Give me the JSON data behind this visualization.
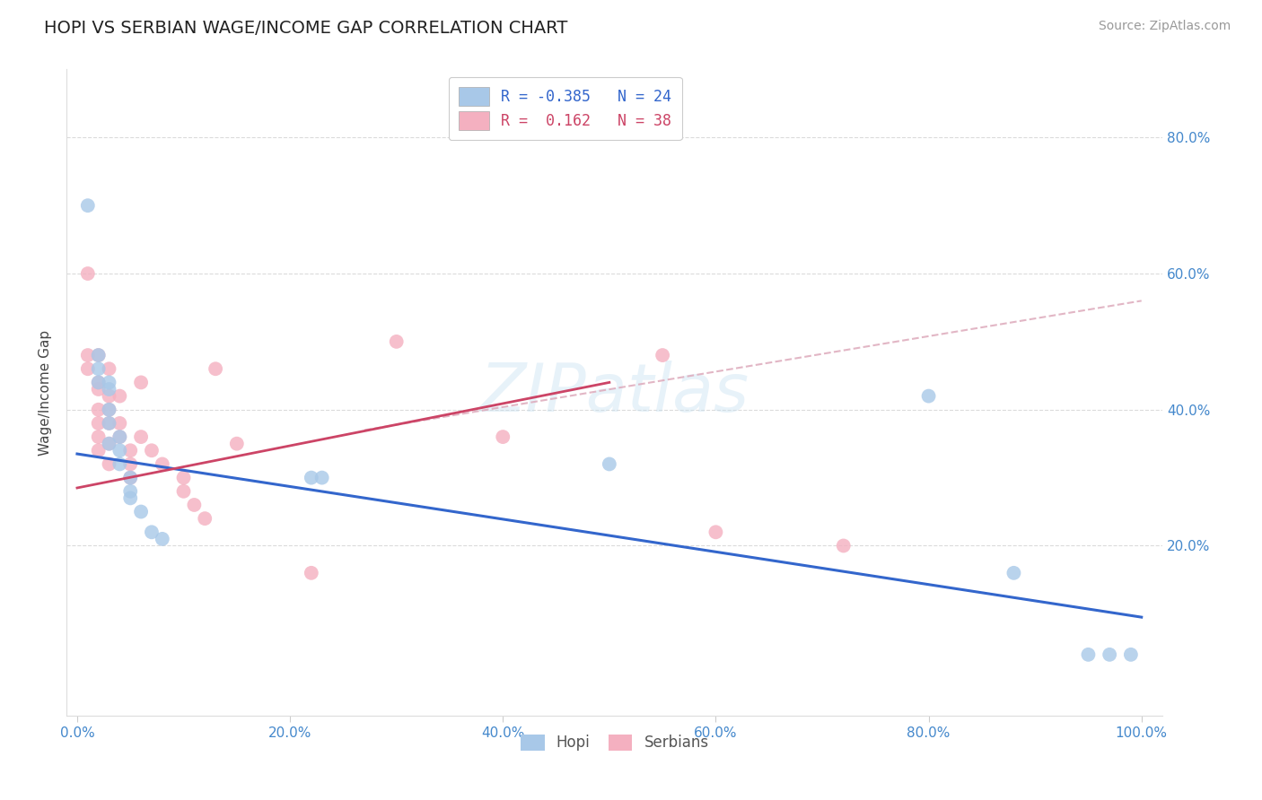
{
  "title": "HOPI VS SERBIAN WAGE/INCOME GAP CORRELATION CHART",
  "source": "Source: ZipAtlas.com",
  "ylabel": "Wage/Income Gap",
  "xlabel_ticks": [
    "0.0%",
    "20.0%",
    "40.0%",
    "60.0%",
    "80.0%",
    "100.0%"
  ],
  "ylabel_ticks_right": [
    "20.0%",
    "40.0%",
    "60.0%",
    "80.0%"
  ],
  "xlim": [
    -0.01,
    1.02
  ],
  "ylim": [
    -0.05,
    0.9
  ],
  "grid_color": "#cccccc",
  "background": "#ffffff",
  "hopi_color": "#a8c8e8",
  "serbian_color": "#f4b0c0",
  "hopi_line_color": "#3366cc",
  "serbian_line_color": "#cc4466",
  "dashed_line_color": "#ddaabb",
  "hopi_scatter": [
    [
      0.01,
      0.7
    ],
    [
      0.02,
      0.48
    ],
    [
      0.02,
      0.46
    ],
    [
      0.02,
      0.44
    ],
    [
      0.03,
      0.44
    ],
    [
      0.03,
      0.43
    ],
    [
      0.03,
      0.4
    ],
    [
      0.03,
      0.38
    ],
    [
      0.03,
      0.35
    ],
    [
      0.04,
      0.36
    ],
    [
      0.04,
      0.34
    ],
    [
      0.04,
      0.32
    ],
    [
      0.05,
      0.3
    ],
    [
      0.05,
      0.28
    ],
    [
      0.05,
      0.27
    ],
    [
      0.06,
      0.25
    ],
    [
      0.07,
      0.22
    ],
    [
      0.08,
      0.21
    ],
    [
      0.22,
      0.3
    ],
    [
      0.23,
      0.3
    ],
    [
      0.5,
      0.32
    ],
    [
      0.8,
      0.42
    ],
    [
      0.88,
      0.16
    ],
    [
      0.95,
      0.04
    ],
    [
      0.97,
      0.04
    ],
    [
      0.99,
      0.04
    ]
  ],
  "serbian_scatter": [
    [
      0.01,
      0.6
    ],
    [
      0.01,
      0.48
    ],
    [
      0.01,
      0.46
    ],
    [
      0.02,
      0.44
    ],
    [
      0.02,
      0.43
    ],
    [
      0.02,
      0.4
    ],
    [
      0.02,
      0.38
    ],
    [
      0.02,
      0.36
    ],
    [
      0.02,
      0.34
    ],
    [
      0.02,
      0.48
    ],
    [
      0.03,
      0.46
    ],
    [
      0.03,
      0.42
    ],
    [
      0.03,
      0.4
    ],
    [
      0.03,
      0.38
    ],
    [
      0.03,
      0.35
    ],
    [
      0.03,
      0.32
    ],
    [
      0.04,
      0.42
    ],
    [
      0.04,
      0.38
    ],
    [
      0.04,
      0.36
    ],
    [
      0.05,
      0.34
    ],
    [
      0.05,
      0.32
    ],
    [
      0.05,
      0.3
    ],
    [
      0.06,
      0.44
    ],
    [
      0.06,
      0.36
    ],
    [
      0.07,
      0.34
    ],
    [
      0.08,
      0.32
    ],
    [
      0.1,
      0.3
    ],
    [
      0.1,
      0.28
    ],
    [
      0.11,
      0.26
    ],
    [
      0.12,
      0.24
    ],
    [
      0.13,
      0.46
    ],
    [
      0.15,
      0.35
    ],
    [
      0.22,
      0.16
    ],
    [
      0.3,
      0.5
    ],
    [
      0.4,
      0.36
    ],
    [
      0.55,
      0.48
    ],
    [
      0.6,
      0.22
    ],
    [
      0.72,
      0.2
    ]
  ],
  "hopi_trend_x": [
    0.0,
    1.0
  ],
  "hopi_trend_y": [
    0.335,
    0.095
  ],
  "serbian_trend_x": [
    0.0,
    0.5
  ],
  "serbian_trend_y": [
    0.285,
    0.44
  ],
  "dashed_trend_x": [
    0.27,
    1.0
  ],
  "dashed_trend_y": [
    0.37,
    0.56
  ],
  "ytick_vals": [
    0.2,
    0.4,
    0.6,
    0.8
  ],
  "xtick_vals": [
    0.0,
    0.2,
    0.4,
    0.6,
    0.8,
    1.0
  ]
}
